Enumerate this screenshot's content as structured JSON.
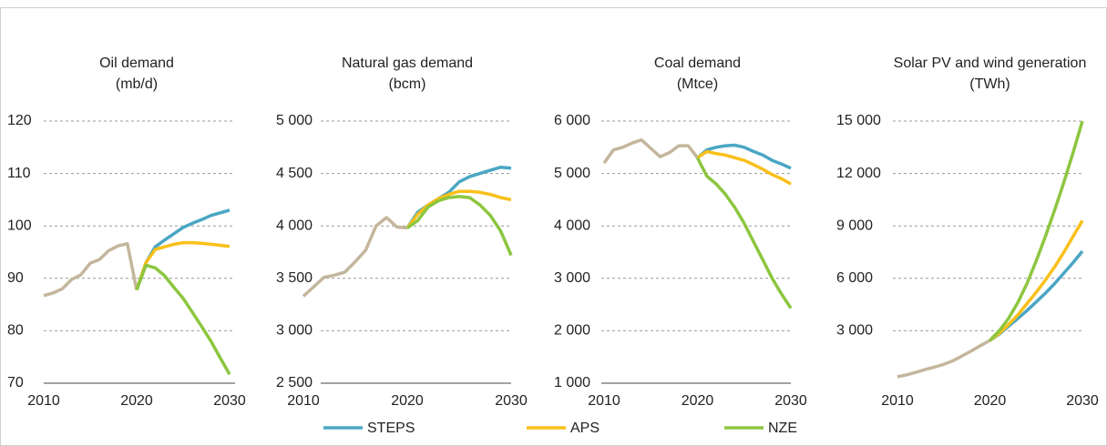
{
  "chart_data": [
    {
      "type": "line",
      "title": "Oil demand",
      "subtitle": "(mb/d)",
      "xlim": [
        2010,
        2030
      ],
      "xticks": [
        2010,
        2020,
        2030
      ],
      "ylim": [
        70,
        120
      ],
      "yticks": [
        70,
        80,
        90,
        100,
        110,
        120
      ],
      "grid": true,
      "series": [
        {
          "color": "#c4b69c",
          "x": [
            2010,
            2011,
            2012,
            2013,
            2014,
            2015,
            2016,
            2017,
            2018,
            2019,
            2020
          ],
          "values": [
            86.7,
            87.2,
            88.0,
            89.8,
            90.7,
            92.9,
            93.6,
            95.3,
            96.2,
            96.6,
            87.8
          ]
        },
        {
          "name": "STEPS",
          "color": "#4aa6c4",
          "x": [
            2020,
            2021,
            2022,
            2023,
            2024,
            2025,
            2026,
            2027,
            2028,
            2029,
            2030
          ],
          "values": [
            87.8,
            93.0,
            96.0,
            97.3,
            98.5,
            99.7,
            100.5,
            101.2,
            102.0,
            102.5,
            103.0
          ]
        },
        {
          "name": "APS",
          "color": "#f9c01a",
          "x": [
            2020,
            2021,
            2022,
            2023,
            2024,
            2025,
            2026,
            2027,
            2028,
            2029,
            2030
          ],
          "values": [
            87.8,
            93.0,
            95.5,
            96.0,
            96.5,
            96.8,
            96.8,
            96.7,
            96.5,
            96.3,
            96.1
          ]
        },
        {
          "name": "NZE",
          "color": "#8cc63f",
          "x": [
            2020,
            2021,
            2022,
            2023,
            2024,
            2025,
            2026,
            2027,
            2028,
            2029,
            2030
          ],
          "values": [
            87.8,
            92.5,
            92.0,
            90.5,
            88.3,
            86.2,
            83.5,
            80.8,
            78.0,
            74.8,
            71.7
          ]
        }
      ]
    },
    {
      "type": "line",
      "title": "Natural gas demand",
      "subtitle": "(bcm)",
      "xlim": [
        2010,
        2030
      ],
      "xticks": [
        2010,
        2020,
        2030
      ],
      "ylim": [
        2500,
        5000
      ],
      "yticks": [
        {
          "value": 2500,
          "label": "2 500"
        },
        {
          "value": 3000,
          "label": "3 000"
        },
        {
          "value": 3500,
          "label": "3 500"
        },
        {
          "value": 4000,
          "label": "4 000"
        },
        {
          "value": 4500,
          "label": "4 500"
        },
        {
          "value": 5000,
          "label": "5 000"
        }
      ],
      "grid": true,
      "series": [
        {
          "color": "#c4b69c",
          "x": [
            2010,
            2011,
            2012,
            2013,
            2014,
            2015,
            2016,
            2017,
            2018,
            2019,
            2020
          ],
          "values": [
            3330,
            3420,
            3510,
            3530,
            3560,
            3660,
            3770,
            4000,
            4080,
            3990,
            3980
          ]
        },
        {
          "color": "#4aa6c4",
          "x": [
            2020,
            2021,
            2022,
            2023,
            2024,
            2025,
            2026,
            2027,
            2028,
            2029,
            2030
          ],
          "values": [
            3980,
            4130,
            4200,
            4260,
            4320,
            4420,
            4470,
            4500,
            4530,
            4560,
            4550
          ]
        },
        {
          "color": "#f9c01a",
          "x": [
            2020,
            2021,
            2022,
            2023,
            2024,
            2025,
            2026,
            2027,
            2028,
            2029,
            2030
          ],
          "values": [
            3980,
            4110,
            4200,
            4260,
            4300,
            4330,
            4330,
            4320,
            4300,
            4270,
            4250
          ]
        },
        {
          "color": "#8cc63f",
          "x": [
            2020,
            2021,
            2022,
            2023,
            2024,
            2025,
            2026,
            2027,
            2028,
            2029,
            2030
          ],
          "values": [
            3980,
            4050,
            4180,
            4240,
            4270,
            4280,
            4270,
            4200,
            4100,
            3950,
            3720
          ]
        }
      ]
    },
    {
      "type": "line",
      "title": "Coal demand",
      "subtitle": "(Mtce)",
      "xlim": [
        2010,
        2030
      ],
      "xticks": [
        2010,
        2020,
        2030
      ],
      "ylim": [
        1000,
        6000
      ],
      "yticks": [
        {
          "value": 1000,
          "label": "1 000"
        },
        {
          "value": 2000,
          "label": "2 000"
        },
        {
          "value": 3000,
          "label": "3 000"
        },
        {
          "value": 4000,
          "label": "4 000"
        },
        {
          "value": 5000,
          "label": "5 000"
        },
        {
          "value": 6000,
          "label": "6 000"
        }
      ],
      "grid": true,
      "series": [
        {
          "color": "#c4b69c",
          "x": [
            2010,
            2011,
            2012,
            2013,
            2014,
            2015,
            2016,
            2017,
            2018,
            2019,
            2020
          ],
          "values": [
            5200,
            5450,
            5500,
            5580,
            5640,
            5480,
            5320,
            5400,
            5530,
            5530,
            5300
          ]
        },
        {
          "color": "#4aa6c4",
          "x": [
            2020,
            2021,
            2022,
            2023,
            2024,
            2025,
            2026,
            2027,
            2028,
            2029,
            2030
          ],
          "values": [
            5300,
            5450,
            5500,
            5530,
            5540,
            5500,
            5420,
            5350,
            5250,
            5180,
            5100
          ]
        },
        {
          "color": "#f9c01a",
          "x": [
            2020,
            2021,
            2022,
            2023,
            2024,
            2025,
            2026,
            2027,
            2028,
            2029,
            2030
          ],
          "values": [
            5300,
            5420,
            5380,
            5350,
            5300,
            5250,
            5170,
            5080,
            4980,
            4900,
            4800
          ]
        },
        {
          "color": "#8cc63f",
          "x": [
            2020,
            2021,
            2022,
            2023,
            2024,
            2025,
            2026,
            2027,
            2028,
            2029,
            2030
          ],
          "values": [
            5300,
            4950,
            4800,
            4600,
            4350,
            4050,
            3700,
            3350,
            3000,
            2700,
            2430
          ]
        }
      ]
    },
    {
      "type": "line",
      "title": "Solar PV and wind generation",
      "subtitle": "(TWh)",
      "xlim": [
        2010,
        2030
      ],
      "xticks": [
        2010,
        2020,
        2030
      ],
      "ylim": [
        0,
        15000
      ],
      "yticks": [
        {
          "value": 3000,
          "label": "3 000"
        },
        {
          "value": 6000,
          "label": "6 000"
        },
        {
          "value": 9000,
          "label": "9 000"
        },
        {
          "value": 12000,
          "label": "12 000"
        },
        {
          "value": 15000,
          "label": "15 000"
        }
      ],
      "grid": true,
      "series": [
        {
          "color": "#c4b69c",
          "x": [
            2010,
            2011,
            2012,
            2013,
            2014,
            2015,
            2016,
            2017,
            2018,
            2019,
            2020
          ],
          "values": [
            370,
            480,
            620,
            780,
            920,
            1080,
            1280,
            1560,
            1850,
            2150,
            2450
          ]
        },
        {
          "color": "#4aa6c4",
          "x": [
            2020,
            2021,
            2022,
            2023,
            2024,
            2025,
            2026,
            2027,
            2028,
            2029,
            2030
          ],
          "values": [
            2450,
            2800,
            3250,
            3700,
            4150,
            4650,
            5150,
            5700,
            6300,
            6900,
            7550
          ]
        },
        {
          "color": "#f9c01a",
          "x": [
            2020,
            2021,
            2022,
            2023,
            2024,
            2025,
            2026,
            2027,
            2028,
            2029,
            2030
          ],
          "values": [
            2450,
            2850,
            3350,
            3900,
            4550,
            5200,
            5900,
            6650,
            7500,
            8400,
            9300
          ]
        },
        {
          "color": "#8cc63f",
          "x": [
            2020,
            2021,
            2022,
            2023,
            2024,
            2025,
            2026,
            2027,
            2028,
            2029,
            2030
          ],
          "values": [
            2450,
            3000,
            3700,
            4600,
            5700,
            7000,
            8400,
            9900,
            11500,
            13200,
            15000
          ]
        }
      ]
    }
  ]
}
